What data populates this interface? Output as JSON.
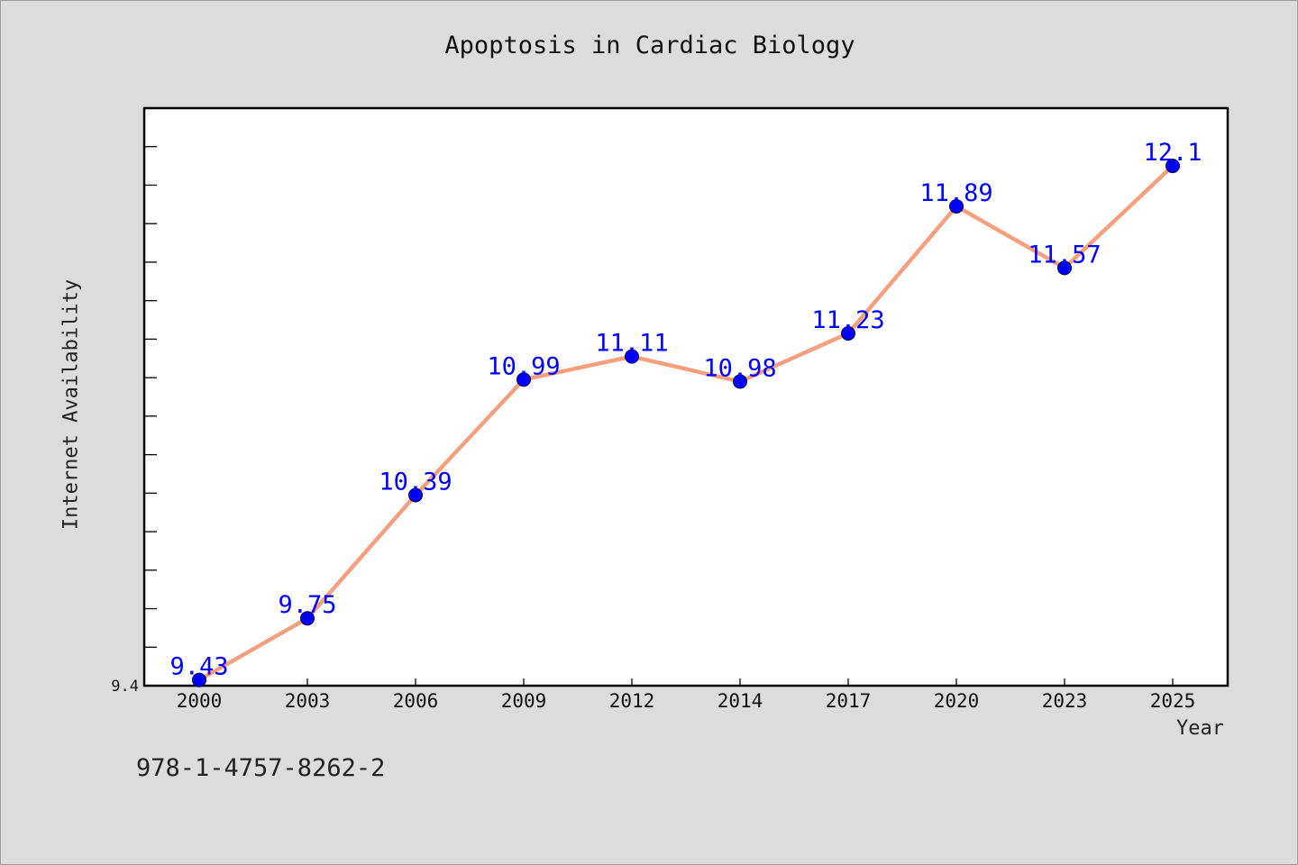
{
  "chart_data": {
    "type": "line",
    "title": "Apoptosis in Cardiac Biology",
    "xlabel": "Year",
    "ylabel": "Internet Availability",
    "categories": [
      "2000",
      "2003",
      "2006",
      "2009",
      "2012",
      "2014",
      "2017",
      "2020",
      "2023",
      "2025"
    ],
    "series": [
      {
        "values": [
          9.43,
          9.75,
          10.39,
          10.99,
          11.11,
          10.98,
          11.23,
          11.89,
          11.57,
          12.1
        ]
      }
    ],
    "data_labels": [
      "9.43",
      "9.75",
      "10.39",
      "10.99",
      "11.11",
      "10.98",
      "11.23",
      "11.89",
      "11.57",
      "12.1"
    ],
    "y_tick_label": "9.4",
    "ylim": [
      9.4,
      12.4
    ],
    "grid": false,
    "colors": {
      "line": "#f4a07e",
      "marker": "#0000ff",
      "label": "#0000ff"
    }
  },
  "footer": {
    "identifier": "978-1-4757-8262-2"
  }
}
